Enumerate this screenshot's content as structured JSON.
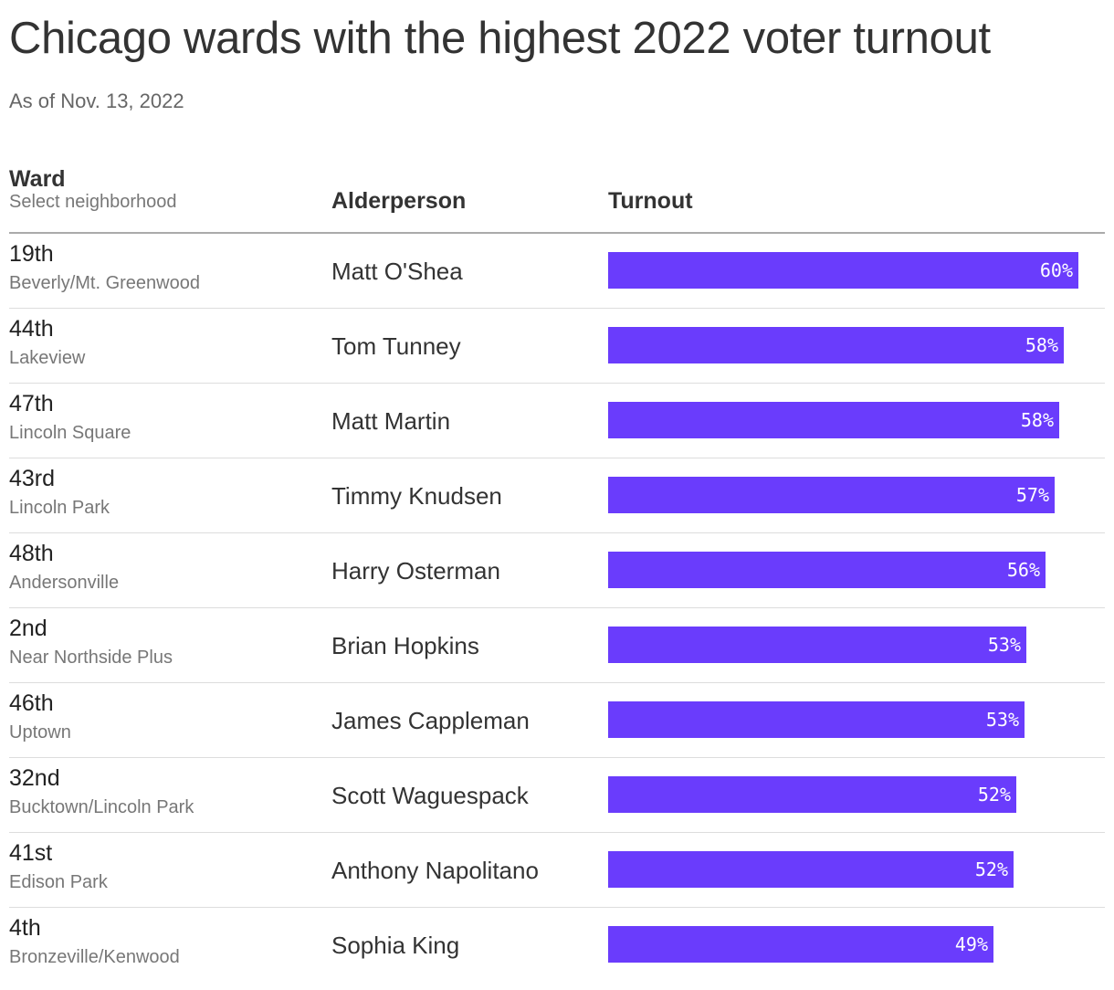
{
  "title": "Chicago wards with the highest 2022 voter turnout",
  "subtitle": "As of Nov. 13, 2022",
  "colors": {
    "bar": "#6a3cfc",
    "text": "#333333",
    "muted": "#777777"
  },
  "headers": {
    "ward": "Ward",
    "ward_sub": "Select neighborhood",
    "alderperson": "Alderperson",
    "turnout": "Turnout"
  },
  "chart_data": {
    "type": "bar",
    "orientation": "horizontal",
    "value_unit": "%",
    "xlim": [
      0,
      61
    ],
    "rows": [
      {
        "ward": "19th",
        "neighborhood": "Beverly/Mt. Greenwood",
        "alderperson": "Matt O'Shea",
        "turnout": 60.0,
        "label": "60%"
      },
      {
        "ward": "44th",
        "neighborhood": "Lakeview",
        "alderperson": "Tom Tunney",
        "turnout": 58.1,
        "label": "58%"
      },
      {
        "ward": "47th",
        "neighborhood": "Lincoln Square",
        "alderperson": "Matt Martin",
        "turnout": 57.5,
        "label": "58%"
      },
      {
        "ward": "43rd",
        "neighborhood": "Lincoln Park",
        "alderperson": "Timmy Knudsen",
        "turnout": 56.9,
        "label": "57%"
      },
      {
        "ward": "48th",
        "neighborhood": "Andersonville",
        "alderperson": "Harry Osterman",
        "turnout": 55.8,
        "label": "56%"
      },
      {
        "ward": "2nd",
        "neighborhood": "Near Northside Plus",
        "alderperson": "Brian Hopkins",
        "turnout": 53.3,
        "label": "53%"
      },
      {
        "ward": "46th",
        "neighborhood": "Uptown",
        "alderperson": "James Cappleman",
        "turnout": 53.1,
        "label": "53%"
      },
      {
        "ward": "32nd",
        "neighborhood": "Bucktown/Lincoln Park",
        "alderperson": "Scott Waguespack",
        "turnout": 52.0,
        "label": "52%"
      },
      {
        "ward": "41st",
        "neighborhood": "Edison Park",
        "alderperson": "Anthony Napolitano",
        "turnout": 51.7,
        "label": "52%"
      },
      {
        "ward": "4th",
        "neighborhood": "Bronzeville/Kenwood",
        "alderperson": "Sophia King",
        "turnout": 49.1,
        "label": "49%"
      }
    ]
  }
}
